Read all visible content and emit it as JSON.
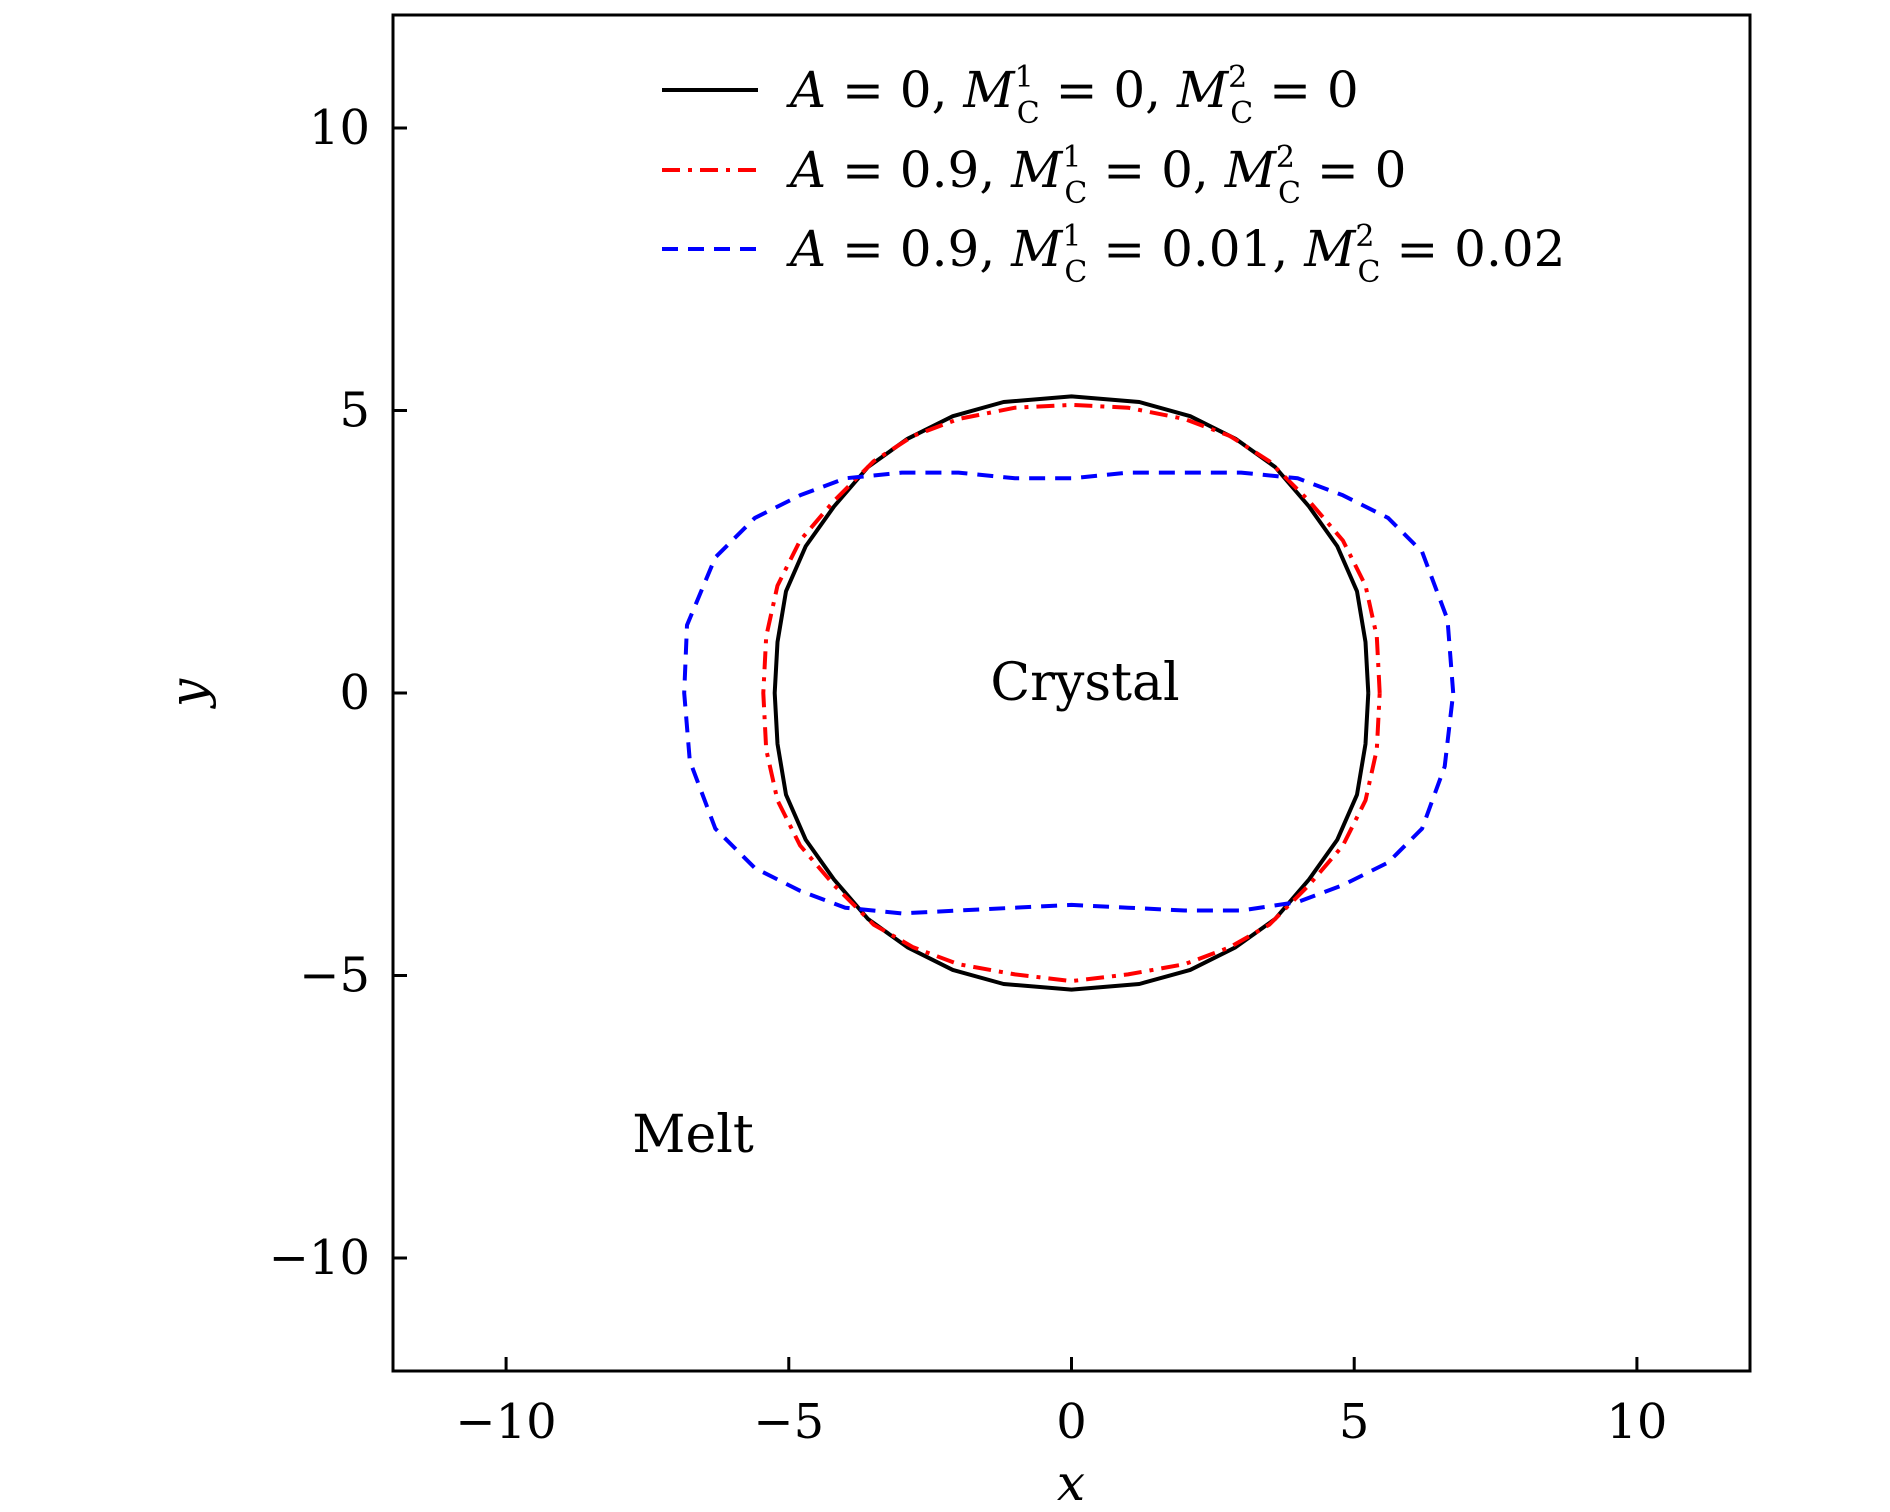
{
  "chart_data": {
    "type": "line",
    "title": "",
    "xlabel": "x",
    "ylabel": "y",
    "xlim": [
      -12,
      12
    ],
    "ylim": [
      -12,
      12
    ],
    "xticks": [
      -10,
      -5,
      0,
      5,
      10
    ],
    "yticks": [
      -10,
      -5,
      0,
      5,
      10
    ],
    "xtick_labels": [
      "−10",
      "−5",
      "0",
      "5",
      "10"
    ],
    "ytick_labels": [
      "−10",
      "−5",
      "0",
      "5",
      "10"
    ],
    "grid": false,
    "legend_position": "top-right",
    "annotations": [
      {
        "text": "Crystal",
        "x": 0.3,
        "y": 0.1
      },
      {
        "text": "Melt",
        "x": -6.6,
        "y": -7.9
      }
    ],
    "series": [
      {
        "legend": {
          "A": "0",
          "M1": "0",
          "M2": "0"
        },
        "color": "#000000",
        "style": "solid",
        "points": [
          [
            5.25,
            0
          ],
          [
            5.2,
            0.9
          ],
          [
            5.05,
            1.8
          ],
          [
            4.7,
            2.6
          ],
          [
            4.2,
            3.3
          ],
          [
            3.6,
            4.0
          ],
          [
            2.9,
            4.5
          ],
          [
            2.1,
            4.9
          ],
          [
            1.2,
            5.15
          ],
          [
            0.0,
            5.25
          ],
          [
            -1.2,
            5.15
          ],
          [
            -2.1,
            4.9
          ],
          [
            -2.9,
            4.5
          ],
          [
            -3.6,
            4.0
          ],
          [
            -4.2,
            3.3
          ],
          [
            -4.7,
            2.6
          ],
          [
            -5.05,
            1.8
          ],
          [
            -5.2,
            0.9
          ],
          [
            -5.25,
            0
          ],
          [
            -5.2,
            -0.9
          ],
          [
            -5.05,
            -1.8
          ],
          [
            -4.7,
            -2.6
          ],
          [
            -4.2,
            -3.3
          ],
          [
            -3.6,
            -4.0
          ],
          [
            -2.9,
            -4.5
          ],
          [
            -2.1,
            -4.9
          ],
          [
            -1.2,
            -5.15
          ],
          [
            0.0,
            -5.25
          ],
          [
            1.2,
            -5.15
          ],
          [
            2.1,
            -4.9
          ],
          [
            2.9,
            -4.5
          ],
          [
            3.6,
            -4.0
          ],
          [
            4.2,
            -3.3
          ],
          [
            4.7,
            -2.6
          ],
          [
            5.05,
            -1.8
          ],
          [
            5.2,
            -0.9
          ],
          [
            5.25,
            0
          ]
        ]
      },
      {
        "legend": {
          "A": "0.9",
          "M1": "0",
          "M2": "0"
        },
        "color": "#ff0000",
        "style": "dashdot",
        "points": [
          [
            5.45,
            0
          ],
          [
            5.4,
            1.0
          ],
          [
            5.2,
            1.9
          ],
          [
            4.8,
            2.7
          ],
          [
            4.2,
            3.4
          ],
          [
            3.5,
            4.1
          ],
          [
            2.8,
            4.55
          ],
          [
            2.0,
            4.85
          ],
          [
            1.0,
            5.05
          ],
          [
            0.0,
            5.1
          ],
          [
            -1.0,
            5.05
          ],
          [
            -2.0,
            4.85
          ],
          [
            -2.8,
            4.55
          ],
          [
            -3.5,
            4.1
          ],
          [
            -4.2,
            3.4
          ],
          [
            -4.8,
            2.7
          ],
          [
            -5.2,
            1.9
          ],
          [
            -5.4,
            1.0
          ],
          [
            -5.45,
            0
          ],
          [
            -5.4,
            -1.0
          ],
          [
            -5.2,
            -1.9
          ],
          [
            -4.8,
            -2.7
          ],
          [
            -4.2,
            -3.4
          ],
          [
            -3.5,
            -4.1
          ],
          [
            -2.8,
            -4.5
          ],
          [
            -2.0,
            -4.8
          ],
          [
            -1.0,
            -4.98
          ],
          [
            0.0,
            -5.1
          ],
          [
            1.0,
            -4.98
          ],
          [
            2.0,
            -4.8
          ],
          [
            2.8,
            -4.5
          ],
          [
            3.5,
            -4.1
          ],
          [
            4.2,
            -3.4
          ],
          [
            4.8,
            -2.7
          ],
          [
            5.2,
            -1.9
          ],
          [
            5.4,
            -1.0
          ],
          [
            5.45,
            0
          ]
        ]
      },
      {
        "legend": {
          "A": "0.9",
          "M1": "0.01",
          "M2": "0.02"
        },
        "color": "#0000ff",
        "style": "dashed",
        "points": [
          [
            6.75,
            0
          ],
          [
            6.65,
            1.3
          ],
          [
            6.2,
            2.5
          ],
          [
            5.6,
            3.1
          ],
          [
            4.8,
            3.5
          ],
          [
            4.0,
            3.8
          ],
          [
            3.0,
            3.9
          ],
          [
            2.0,
            3.9
          ],
          [
            1.0,
            3.9
          ],
          [
            0.0,
            3.8
          ],
          [
            -1.0,
            3.8
          ],
          [
            -2.0,
            3.9
          ],
          [
            -3.0,
            3.9
          ],
          [
            -4.0,
            3.8
          ],
          [
            -4.8,
            3.5
          ],
          [
            -5.6,
            3.1
          ],
          [
            -6.3,
            2.4
          ],
          [
            -6.8,
            1.2
          ],
          [
            -6.85,
            0
          ],
          [
            -6.75,
            -1.2
          ],
          [
            -6.3,
            -2.4
          ],
          [
            -5.6,
            -3.1
          ],
          [
            -4.8,
            -3.5
          ],
          [
            -4.0,
            -3.8
          ],
          [
            -3.0,
            -3.9
          ],
          [
            -2.0,
            -3.85
          ],
          [
            -1.0,
            -3.8
          ],
          [
            0.0,
            -3.75
          ],
          [
            1.0,
            -3.8
          ],
          [
            2.0,
            -3.85
          ],
          [
            3.0,
            -3.85
          ],
          [
            4.0,
            -3.7
          ],
          [
            4.8,
            -3.4
          ],
          [
            5.6,
            -3.0
          ],
          [
            6.2,
            -2.4
          ],
          [
            6.6,
            -1.3
          ],
          [
            6.75,
            0
          ]
        ]
      }
    ]
  }
}
